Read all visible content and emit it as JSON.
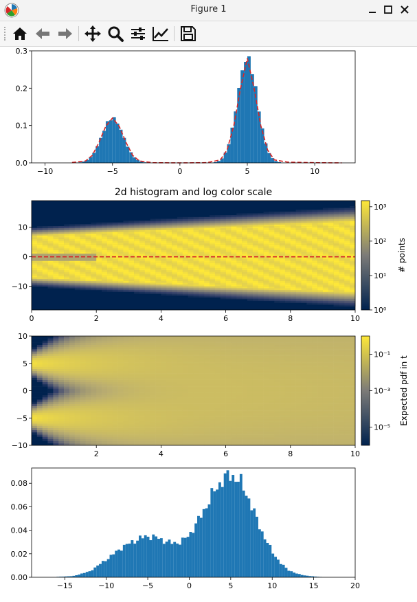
{
  "window": {
    "title": "Figure 1",
    "icons": [
      "matplotlib-logo-icon",
      "minimize-icon",
      "maximize-icon",
      "close-icon"
    ]
  },
  "toolbar": {
    "buttons": [
      {
        "icon": "home-icon"
      },
      {
        "icon": "back-arrow-icon"
      },
      {
        "icon": "forward-arrow-icon"
      },
      {
        "icon": "pan-move-icon"
      },
      {
        "icon": "zoom-magnifier-icon"
      },
      {
        "icon": "configure-subplots-icon"
      },
      {
        "icon": "edit-axis-icon"
      },
      {
        "icon": "save-floppy-icon"
      }
    ]
  },
  "colors": {
    "bar": "#1f77b4",
    "fit_line": "#d62728",
    "cividis_low": "#00224e",
    "cividis_mid": "#7c7b78",
    "cividis_high": "#fee838"
  },
  "chart_data": [
    {
      "type": "bar",
      "subtype": "histogram",
      "title": "",
      "xlim": [
        -11,
        13
      ],
      "ylim": [
        0,
        0.3
      ],
      "xticks": [
        "−10",
        "−5",
        "0",
        "5",
        "10"
      ],
      "yticks": [
        "0.0",
        "0.1",
        "0.2",
        "0.3"
      ],
      "series": [
        {
          "kind": "histogram",
          "distribution": "two gaussian components",
          "components": [
            {
              "center": -5,
              "peak": 0.12,
              "sigma": 0.8
            },
            {
              "center": 5,
              "peak": 0.28,
              "sigma": 0.75
            }
          ],
          "x_range": [
            -8,
            12
          ],
          "bins": 80
        },
        {
          "kind": "line",
          "style": "dashed",
          "color": "red",
          "x": [
            -8,
            -7,
            -6.5,
            -6,
            -5.5,
            -5,
            -4.5,
            -4,
            -3.5,
            -3,
            -2,
            0,
            2,
            3,
            3.5,
            4,
            4.5,
            5,
            5.5,
            6,
            6.5,
            7,
            8,
            10,
            12
          ],
          "y": [
            0.001,
            0.005,
            0.02,
            0.055,
            0.098,
            0.12,
            0.098,
            0.055,
            0.02,
            0.005,
            0.0005,
            0.0,
            0.0005,
            0.008,
            0.035,
            0.1,
            0.2,
            0.28,
            0.2,
            0.1,
            0.035,
            0.008,
            0.002,
            0.0005,
            0.0
          ]
        }
      ]
    },
    {
      "type": "heatmap",
      "title": "2d histogram and log color scale",
      "xlim": [
        0,
        10
      ],
      "ylim": [
        -18,
        19
      ],
      "xticks": [
        "0",
        "2",
        "4",
        "6",
        "8",
        "10"
      ],
      "yticks": [
        "−10",
        "0",
        "10"
      ],
      "colormap": "cividis",
      "colorbar": {
        "label": "# points",
        "scale": "log",
        "ticks": [
          "10⁰",
          "10¹",
          "10²",
          "10³"
        ],
        "range": [
          1,
          1500
        ]
      },
      "band": {
        "center_line_y": 0,
        "core_half_width_at_x0": 7,
        "core_half_width_at_x10": 12,
        "spread_at_x0": 10,
        "spread_at_x10": 17
      },
      "overlay": {
        "kind": "line",
        "style": "dashed",
        "color": "red",
        "y": 0
      }
    },
    {
      "type": "heatmap",
      "title": "",
      "xlim": [
        0,
        10
      ],
      "ylim": [
        -10,
        10
      ],
      "xticks": [
        "2",
        "4",
        "6",
        "8",
        "10"
      ],
      "yticks": [
        "−10",
        "−5",
        "0",
        "5",
        "10"
      ],
      "colormap": "cividis",
      "colorbar": {
        "label": "Expected pdf in t",
        "scale": "log",
        "ticks": [
          "10⁻⁵",
          "10⁻³",
          "10⁻¹"
        ],
        "range": [
          1e-06,
          1
        ]
      }
    },
    {
      "type": "bar",
      "subtype": "histogram",
      "title": "",
      "xlim": [
        -19,
        20
      ],
      "ylim": [
        0,
        0.093
      ],
      "xticks": [
        "−15",
        "−10",
        "−5",
        "0",
        "5",
        "10",
        "15",
        "20"
      ],
      "yticks": [
        "0.00",
        "0.02",
        "0.04",
        "0.06",
        "0.08"
      ],
      "x_range": [
        -16,
        16
      ],
      "bins": 100,
      "envelope": [
        {
          "x": -16,
          "y": 0.0003
        },
        {
          "x": -14,
          "y": 0.001
        },
        {
          "x": -12,
          "y": 0.005
        },
        {
          "x": -10,
          "y": 0.015
        },
        {
          "x": -8,
          "y": 0.026
        },
        {
          "x": -6,
          "y": 0.033
        },
        {
          "x": -5,
          "y": 0.035
        },
        {
          "x": -4,
          "y": 0.034
        },
        {
          "x": -3,
          "y": 0.031
        },
        {
          "x": -2,
          "y": 0.029
        },
        {
          "x": -1,
          "y": 0.03
        },
        {
          "x": 0,
          "y": 0.036
        },
        {
          "x": 1,
          "y": 0.047
        },
        {
          "x": 2,
          "y": 0.06
        },
        {
          "x": 3,
          "y": 0.073
        },
        {
          "x": 4,
          "y": 0.083
        },
        {
          "x": 5,
          "y": 0.087
        },
        {
          "x": 6,
          "y": 0.083
        },
        {
          "x": 7,
          "y": 0.07
        },
        {
          "x": 8,
          "y": 0.052
        },
        {
          "x": 9,
          "y": 0.035
        },
        {
          "x": 10,
          "y": 0.022
        },
        {
          "x": 11,
          "y": 0.012
        },
        {
          "x": 12,
          "y": 0.006
        },
        {
          "x": 13,
          "y": 0.003
        },
        {
          "x": 14,
          "y": 0.0015
        },
        {
          "x": 15,
          "y": 0.0007
        },
        {
          "x": 16,
          "y": 0.0002
        }
      ]
    }
  ]
}
